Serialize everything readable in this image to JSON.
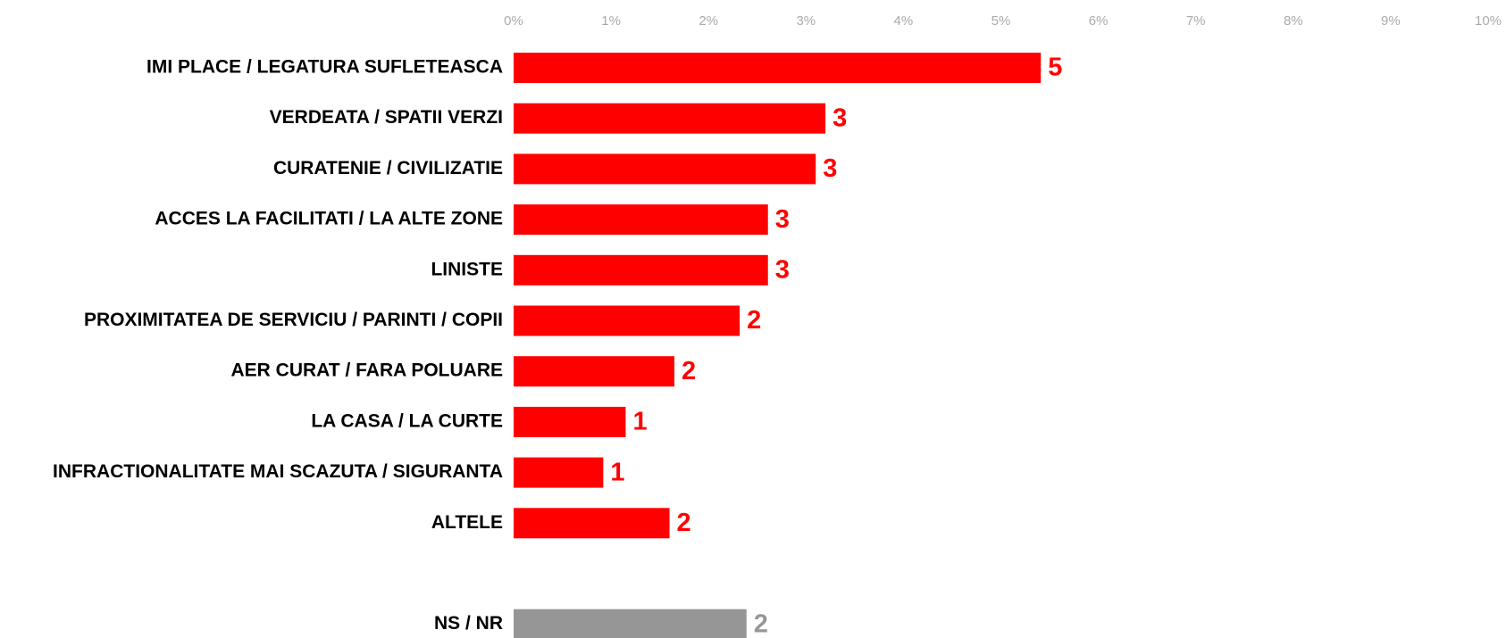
{
  "chart_data": {
    "type": "hbar",
    "categories": [
      "IMI PLACE / LEGATURA SUFLETEASCA",
      "VERDEATA / SPATII VERZI",
      "CURATENIE / CIVILIZATIE",
      "ACCES LA FACILITATI / LA ALTE ZONE",
      "LINISTE",
      "PROXIMITATEA DE SERVICIU / PARINTI / COPII",
      "AER CURAT / FARA POLUARE",
      "LA CASA / LA CURTE",
      "INFRACTIONALITATE MAI SCAZUTA / SIGURANTA",
      "ALTELE",
      "NS / NR"
    ],
    "values": [
      5.41,
      3.2,
      3.1,
      2.61,
      2.61,
      2.32,
      1.65,
      1.15,
      0.92,
      1.6,
      2.39
    ],
    "value_labels": [
      "5",
      "3",
      "3",
      "3",
      "3",
      "2",
      "2",
      "1",
      "1",
      "2",
      "2"
    ],
    "colors": [
      "#ff0000",
      "#ff0000",
      "#ff0000",
      "#ff0000",
      "#ff0000",
      "#ff0000",
      "#ff0000",
      "#ff0000",
      "#ff0000",
      "#ff0000",
      "#969696"
    ],
    "xlim": [
      0,
      10
    ],
    "xticks": [
      {
        "value": 0,
        "label": "0%"
      },
      {
        "value": 1,
        "label": "1%"
      },
      {
        "value": 2,
        "label": "2%"
      },
      {
        "value": 3,
        "label": "3%"
      },
      {
        "value": 4,
        "label": "4%"
      },
      {
        "value": 5,
        "label": "5%"
      },
      {
        "value": 6,
        "label": "6%"
      },
      {
        "value": 7,
        "label": "7%"
      },
      {
        "value": 8,
        "label": "8%"
      },
      {
        "value": 9,
        "label": "9%"
      },
      {
        "value": 10,
        "label": "10%"
      }
    ],
    "grid": false
  }
}
